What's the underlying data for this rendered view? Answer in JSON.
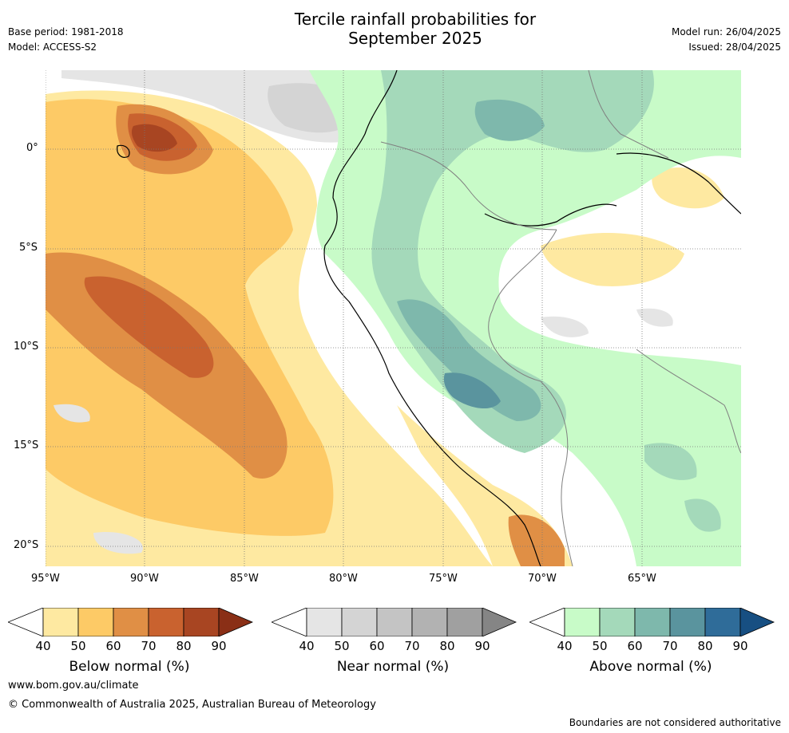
{
  "title": {
    "line1": "Tercile rainfall probabilities for",
    "line2": "September 2025"
  },
  "meta": {
    "base_period": "Base period: 1981-2018",
    "model": "Model: ACCESS-S2",
    "model_run": "Model run: 26/04/2025",
    "issued": "Issued: 28/04/2025"
  },
  "axes": {
    "lat_ticks": [
      "0°",
      "5°S",
      "10°S",
      "15°S",
      "20°S"
    ],
    "lon_ticks": [
      "95°W",
      "90°W",
      "85°W",
      "80°W",
      "75°W",
      "70°W",
      "65°W"
    ]
  },
  "colorbars": [
    {
      "label": "Below normal (%)",
      "ticks": [
        "40",
        "50",
        "60",
        "70",
        "80",
        "90"
      ],
      "colors": [
        "#ffffff",
        "#fee9a1",
        "#fdca66",
        "#e08f45",
        "#c9622f",
        "#a84522",
        "#8a2f16"
      ]
    },
    {
      "label": "Near normal (%)",
      "ticks": [
        "40",
        "50",
        "60",
        "70",
        "80",
        "90"
      ],
      "colors": [
        "#ffffff",
        "#e5e5e5",
        "#d4d4d4",
        "#c4c4c4",
        "#b2b2b2",
        "#a0a0a0",
        "#858585"
      ]
    },
    {
      "label": "Above normal (%)",
      "ticks": [
        "40",
        "50",
        "60",
        "70",
        "80",
        "90"
      ],
      "colors": [
        "#ffffff",
        "#c8fbc8",
        "#a4d9ba",
        "#7eb8ac",
        "#5a949e",
        "#2f6c99",
        "#174f82"
      ]
    }
  ],
  "footer": {
    "website": "www.bom.gov.au/climate",
    "copyright": "© Commonwealth of Australia 2025, Australian Bureau of Meteorology",
    "disclaimer": "Boundaries are not considered authoritative"
  }
}
